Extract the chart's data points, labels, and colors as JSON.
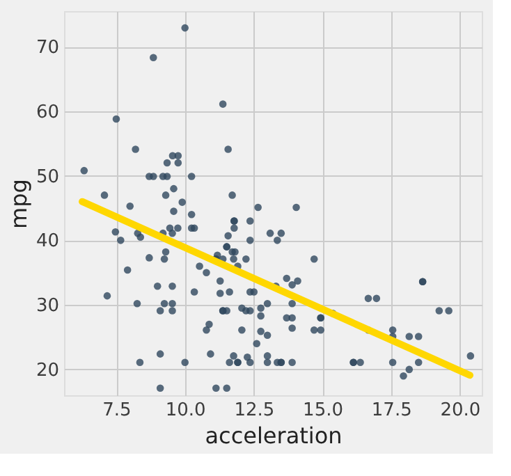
{
  "chart_data": {
    "type": "scatter",
    "xlabel": "acceleration",
    "ylabel": "mpg",
    "xlim": [
      5.6,
      20.8
    ],
    "ylim": [
      16,
      75.5
    ],
    "xticks": [
      7.5,
      {
        "value": 10,
        "label": "10.0"
      },
      12.5,
      {
        "value": 15,
        "label": "15.0"
      },
      17.5,
      {
        "value": 20,
        "label": "20.0"
      }
    ],
    "yticks": [
      20,
      30,
      40,
      50,
      60,
      70
    ],
    "grid": true,
    "marker": "circle",
    "series": [
      {
        "color": "#30475e",
        "x": [
          10.0,
          8.85,
          11.38,
          7.5,
          8.2,
          9.55,
          9.75,
          11.57,
          9.35,
          9.75,
          6.33,
          8.7,
          8.85,
          9.2,
          9.35,
          10.24,
          9.59,
          7.07,
          9.3,
          11.72,
          9.9,
          8.0,
          12.66,
          9.59,
          10.24,
          7.47,
          7.66,
          8.28,
          8.38,
          9.2,
          9.45,
          9.74,
          9.54,
          10.24,
          10.34,
          11.79,
          11.79,
          11.79,
          12.37,
          11.57,
          12.37,
          13.1,
          9.3,
          9.25,
          8.7,
          11.52,
          11.52,
          11.72,
          11.82,
          11.18,
          11.13,
          11.13,
          11.38,
          11.77,
          12.22,
          11.92,
          10.53,
          10.78,
          7.91,
          11.28,
          9.0,
          9.54,
          10.34,
          11.28,
          11.62,
          12.37,
          12.51,
          7.17,
          13.0,
          8.26,
          9.25,
          9.54,
          9.1,
          9.54,
          11.38,
          11.38,
          11.52,
          12.07,
          12.22,
          12.37,
          12.76,
          12.76,
          10.88,
          10.78,
          12.07,
          12.76,
          12.61,
          13.0,
          9.1,
          10.93,
          11.77,
          12.27,
          13.0,
          13.0,
          8.36,
          10.0,
          11.62,
          11.92,
          11.92,
          12.37,
          9.1,
          11.13,
          11.52,
          14.05,
          13.5,
          13.36,
          14.7,
          13.7,
          13.9,
          14.1,
          13.31,
          13.9,
          13.7,
          13.9,
          14.94,
          14.94,
          15.38,
          13.9,
          14.7,
          14.94,
          16.67,
          16.97,
          18.65,
          18.65,
          19.25,
          19.6,
          16.67,
          17.56,
          17.56,
          18.16,
          18.5,
          13.36,
          13.5,
          13.5,
          13.9,
          16.13,
          16.13,
          16.38,
          17.56,
          18.5,
          17.95,
          18.16,
          20.39
        ],
        "values": [
          72.9,
          68.3,
          61.1,
          58.8,
          54.1,
          53.1,
          53.1,
          54.1,
          52.0,
          52.0,
          50.8,
          49.9,
          49.9,
          49.9,
          49.9,
          49.9,
          48.0,
          47.0,
          47.0,
          47.0,
          45.9,
          45.3,
          45.1,
          44.5,
          44.0,
          41.3,
          40.0,
          41.1,
          40.5,
          41.1,
          41.9,
          41.9,
          41.1,
          41.9,
          41.9,
          43.0,
          43.0,
          41.9,
          43.0,
          40.7,
          40.0,
          41.1,
          38.2,
          37.1,
          37.3,
          39.0,
          39.0,
          38.2,
          38.2,
          37.7,
          37.1,
          37.1,
          37.1,
          37.1,
          37.1,
          36.0,
          36.0,
          35.0,
          35.4,
          33.7,
          32.9,
          32.9,
          32.0,
          31.8,
          32.0,
          32.0,
          32.0,
          31.4,
          30.2,
          30.2,
          30.2,
          30.2,
          29.1,
          29.1,
          29.1,
          29.1,
          29.1,
          29.5,
          29.1,
          29.1,
          29.5,
          28.3,
          27.0,
          26.1,
          26.1,
          25.9,
          24.0,
          25.3,
          22.4,
          22.4,
          22.1,
          21.9,
          22.1,
          21.1,
          21.1,
          21.1,
          21.1,
          21.1,
          21.1,
          21.1,
          17.1,
          17.1,
          17.1,
          45.1,
          41.1,
          40.0,
          37.1,
          34.1,
          33.1,
          33.7,
          32.9,
          30.2,
          28.0,
          28.0,
          28.0,
          28.0,
          28.7,
          26.4,
          26.1,
          26.1,
          31.0,
          31.0,
          33.6,
          33.6,
          29.1,
          29.1,
          26.1,
          26.1,
          25.1,
          25.1,
          25.1,
          21.1,
          21.1,
          21.1,
          21.1,
          21.1,
          21.1,
          21.1,
          21.1,
          21.1,
          19.0,
          20.0,
          22.1
        ]
      },
      {
        "type": "line",
        "marker": "none",
        "line_style": "solid",
        "color": "#ffd700",
        "x": [
          6.26,
          20.37
        ],
        "values": [
          46.0,
          19.1
        ]
      }
    ]
  }
}
